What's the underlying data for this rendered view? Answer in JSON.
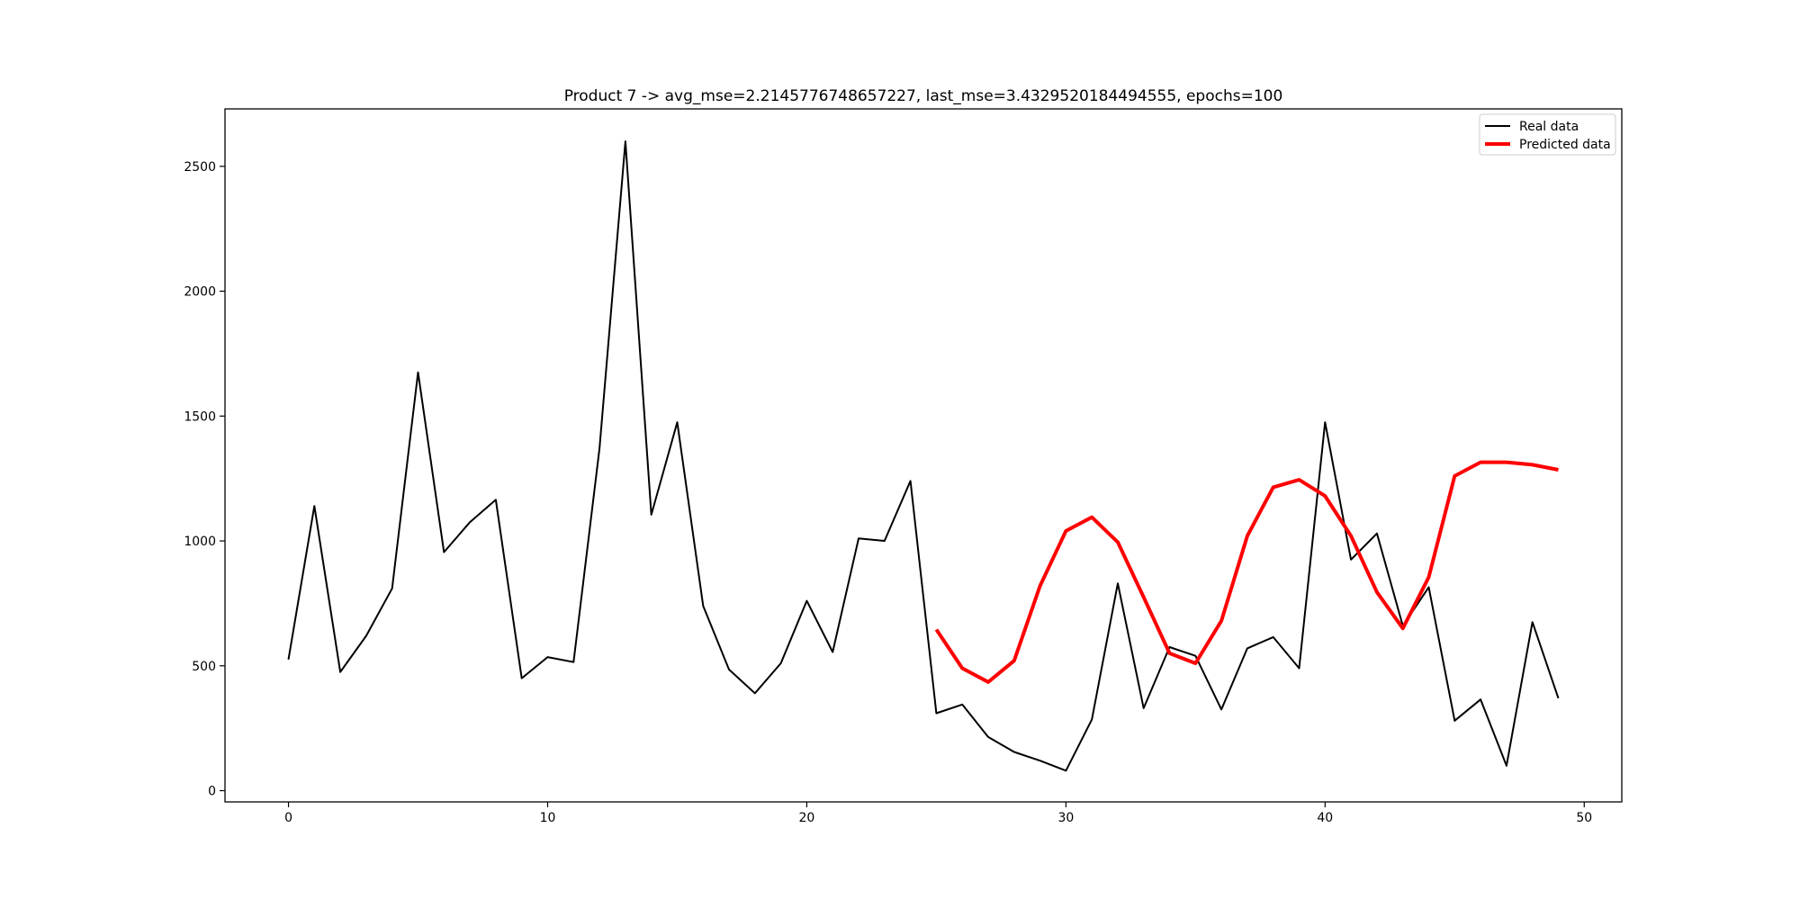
{
  "chart_data": {
    "type": "line",
    "title": "Product 7 -> avg_mse=2.2145776748657227, last_mse=3.4329520184494555, epochs=100",
    "xlabel": "",
    "ylabel": "",
    "xlim": [
      -2.45,
      51.45
    ],
    "ylim": [
      -45,
      2730
    ],
    "xticks": [
      0,
      10,
      20,
      30,
      40,
      50
    ],
    "yticks": [
      0,
      500,
      1000,
      1500,
      2000,
      2500
    ],
    "grid": false,
    "legend_position": "top-right",
    "series": [
      {
        "name": "Real data",
        "color": "#000000",
        "x": [
          0,
          1,
          2,
          3,
          4,
          5,
          6,
          7,
          8,
          9,
          10,
          11,
          12,
          13,
          14,
          15,
          16,
          17,
          18,
          19,
          20,
          21,
          22,
          23,
          24,
          25,
          26,
          27,
          28,
          29,
          30,
          31,
          32,
          33,
          34,
          35,
          36,
          37,
          38,
          39,
          40,
          41,
          42,
          43,
          44,
          45,
          46,
          47,
          48,
          49
        ],
        "values": [
          525,
          1140,
          475,
          620,
          810,
          1675,
          955,
          1075,
          1165,
          450,
          535,
          515,
          1370,
          2600,
          1105,
          1475,
          740,
          485,
          390,
          510,
          760,
          555,
          1010,
          1000,
          1240,
          310,
          345,
          215,
          155,
          120,
          80,
          285,
          830,
          330,
          575,
          540,
          325,
          570,
          615,
          490,
          1475,
          925,
          1030,
          660,
          815,
          280,
          365,
          100,
          675,
          370
        ]
      },
      {
        "name": "Predicted data",
        "color": "#ff0000",
        "x": [
          25,
          26,
          27,
          28,
          29,
          30,
          31,
          32,
          33,
          34,
          35,
          36,
          37,
          38,
          39,
          40,
          41,
          42,
          43,
          44,
          45,
          46,
          47,
          48,
          49
        ],
        "values": [
          645,
          490,
          435,
          520,
          820,
          1040,
          1095,
          995,
          775,
          550,
          510,
          680,
          1020,
          1215,
          1245,
          1180,
          1020,
          795,
          650,
          855,
          1260,
          1315,
          1315,
          1305,
          1285
        ]
      }
    ]
  }
}
